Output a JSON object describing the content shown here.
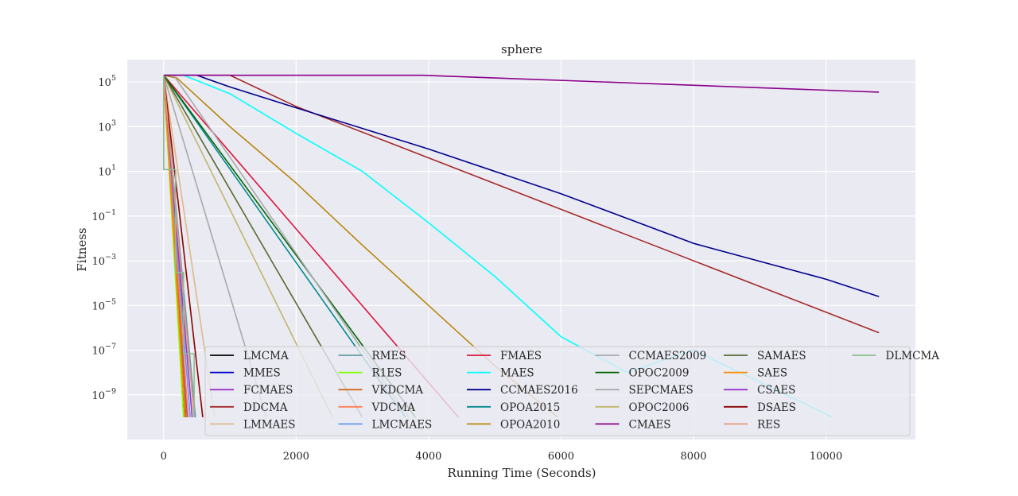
{
  "chart_data": {
    "type": "line",
    "title": "sphere",
    "xlabel": "Running Time (Seconds)",
    "ylabel": "Fitness",
    "xlim": [
      -550,
      11350
    ],
    "ylim": [
      1e-11,
      1000000.0
    ],
    "yscale": "log",
    "x_ticks": [
      0,
      2000,
      4000,
      6000,
      8000,
      10000
    ],
    "x_tick_labels": [
      "0",
      "2000",
      "4000",
      "6000",
      "8000",
      "10000"
    ],
    "y_ticks": [
      1e-09,
      1e-07,
      1e-05,
      0.001,
      0.1,
      10.0,
      1000.0,
      100000.0
    ],
    "y_tick_labels": [
      {
        "base": "10",
        "exp": "−9"
      },
      {
        "base": "10",
        "exp": "−7"
      },
      {
        "base": "10",
        "exp": "−5"
      },
      {
        "base": "10",
        "exp": "−3"
      },
      {
        "base": "10",
        "exp": "−1"
      },
      {
        "base": "10",
        "exp": "1"
      },
      {
        "base": "10",
        "exp": "3"
      },
      {
        "base": "10",
        "exp": "5"
      }
    ],
    "grid": true,
    "legend_placement": "lower-right",
    "legend_columns": 6,
    "series": [
      {
        "name": "LMCMA",
        "color": "#000000",
        "points": [
          [
            0,
            200000
          ],
          [
            310,
            1e-10
          ]
        ]
      },
      {
        "name": "MMES",
        "color": "#0000cc",
        "points": [
          [
            0,
            200000
          ],
          [
            330,
            1e-10
          ]
        ]
      },
      {
        "name": "FCMAES",
        "color": "#9932cc",
        "points": [
          [
            0,
            200000
          ],
          [
            360,
            1e-10
          ]
        ]
      },
      {
        "name": "DDCMA",
        "color": "#a52a2a",
        "points": [
          [
            0,
            200000
          ],
          [
            1000,
            200000
          ],
          [
            2000,
            8000
          ],
          [
            4000,
            40
          ],
          [
            6000,
            0.2
          ],
          [
            8000,
            0.001
          ],
          [
            10000,
            5e-06
          ],
          [
            10800,
            6e-07
          ]
        ]
      },
      {
        "name": "LMMAES",
        "color": "#deb887",
        "points": [
          [
            0,
            200000
          ],
          [
            770,
            1e-10
          ]
        ]
      },
      {
        "name": "RMES",
        "color": "#5f9ea0",
        "points": [
          [
            0,
            200000
          ],
          [
            480,
            1e-10
          ]
        ]
      },
      {
        "name": "R1ES",
        "color": "#7fff00",
        "points": [
          [
            0,
            200000
          ],
          [
            300,
            1e-10
          ]
        ]
      },
      {
        "name": "VKDCMA",
        "color": "#d2691e",
        "points": [
          [
            0,
            200000
          ],
          [
            340,
            1e-10
          ]
        ]
      },
      {
        "name": "VDCMA",
        "color": "#ff7f50",
        "points": [
          [
            0,
            200000
          ],
          [
            370,
            1e-10
          ]
        ]
      },
      {
        "name": "LMCMAES",
        "color": "#6495ed",
        "points": [
          [
            0,
            200000
          ],
          [
            400,
            1e-10
          ]
        ]
      },
      {
        "name": "FMAES",
        "color": "#dc143c",
        "points": [
          [
            0,
            200000
          ],
          [
            4450,
            1e-10
          ]
        ]
      },
      {
        "name": "MAES",
        "color": "#00ffff",
        "points": [
          [
            0,
            200000
          ],
          [
            300,
            200000
          ],
          [
            1000,
            30000
          ],
          [
            2000,
            500
          ],
          [
            3000,
            10
          ],
          [
            4000,
            0.05
          ],
          [
            5000,
            0.0002
          ],
          [
            6000,
            4e-07
          ],
          [
            7000,
            1e-08
          ],
          [
            8000,
            1e-07
          ],
          [
            10100,
            1e-10
          ]
        ]
      },
      {
        "name": "CCMAES2016",
        "color": "#00008b",
        "points": [
          [
            0,
            200000
          ],
          [
            500,
            200000
          ],
          [
            1000,
            60000
          ],
          [
            2000,
            7000
          ],
          [
            4000,
            100
          ],
          [
            6000,
            1
          ],
          [
            8000,
            0.006
          ],
          [
            10000,
            0.00015
          ],
          [
            10800,
            2.5e-05
          ]
        ]
      },
      {
        "name": "OPOA2015",
        "color": "#008b8b",
        "points": [
          [
            0,
            200000
          ],
          [
            3650,
            1e-10
          ]
        ]
      },
      {
        "name": "OPOA2010",
        "color": "#b8860b",
        "points": [
          [
            0,
            200000
          ],
          [
            200,
            150000
          ],
          [
            1000,
            1000
          ],
          [
            2000,
            3
          ],
          [
            3000,
            0.005
          ],
          [
            4000,
            1e-05
          ],
          [
            5000,
            2e-08
          ],
          [
            5950,
            1e-10
          ]
        ]
      },
      {
        "name": "CCMAES2009",
        "color": "#a9a9a9",
        "points": [
          [
            0,
            200000
          ],
          [
            1550,
            1e-10
          ]
        ]
      },
      {
        "name": "OPOC2009",
        "color": "#006400",
        "points": [
          [
            0,
            200000
          ],
          [
            3800,
            1e-10
          ]
        ]
      },
      {
        "name": "SEPCMAES",
        "color": "#a9a9a9",
        "points": [
          [
            0,
            200000
          ],
          [
            150,
            200000
          ],
          [
            3700,
            1e-10
          ]
        ]
      },
      {
        "name": "OPOC2006",
        "color": "#bdb76b",
        "points": [
          [
            0,
            200000
          ],
          [
            2550,
            1e-10
          ]
        ]
      },
      {
        "name": "CMAES",
        "color": "#8b008b",
        "points": [
          [
            0,
            200000
          ],
          [
            3900,
            200000
          ],
          [
            10800,
            35000
          ]
        ]
      },
      {
        "name": "SAMAES",
        "color": "#556b2f",
        "points": [
          [
            0,
            200000
          ],
          [
            3000,
            1e-10
          ]
        ]
      },
      {
        "name": "SAES",
        "color": "#ff8c00",
        "points": [
          [
            0,
            200000
          ],
          [
            320,
            1e-10
          ]
        ]
      },
      {
        "name": "CSAES",
        "color": "#9932cc",
        "points": [
          [
            0,
            200000
          ],
          [
            430,
            1e-10
          ]
        ]
      },
      {
        "name": "DSAES",
        "color": "#8b0000",
        "points": [
          [
            0,
            200000
          ],
          [
            590,
            1e-10
          ]
        ]
      },
      {
        "name": "RES",
        "color": "#e9967a",
        "points": [
          [
            0,
            200000
          ],
          [
            460,
            1e-10
          ]
        ]
      },
      {
        "name": "DLMCMA",
        "color": "#8fbc8f",
        "points": [
          [
            0,
            200000
          ],
          [
            0,
            12
          ],
          [
            180,
            12
          ],
          [
            180,
            0.0003
          ],
          [
            300,
            0.0003
          ],
          [
            300,
            7e-08
          ],
          [
            460,
            7e-08
          ],
          [
            460,
            1e-10
          ]
        ]
      }
    ]
  }
}
